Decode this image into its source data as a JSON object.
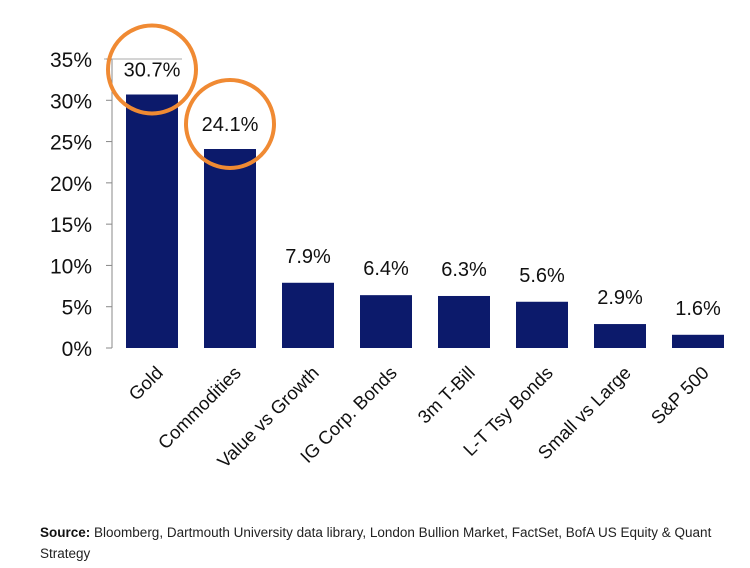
{
  "chart_data": {
    "type": "bar",
    "categories": [
      "Gold",
      "Commodities",
      "Value vs Growth",
      "IG Corp. Bonds",
      "3m T-Bill",
      "L-T Tsy Bonds",
      "Small vs Large",
      "S&P 500"
    ],
    "values": [
      30.7,
      24.1,
      7.9,
      6.4,
      6.3,
      5.6,
      2.9,
      1.6
    ],
    "data_labels": [
      "30.7%",
      "24.1%",
      "7.9%",
      "6.4%",
      "6.3%",
      "5.6%",
      "2.9%",
      "1.6%"
    ],
    "highlighted": [
      "Gold",
      "Commodities"
    ],
    "yticks": [
      "0%",
      "5%",
      "10%",
      "15%",
      "20%",
      "25%",
      "30%",
      "35%"
    ],
    "ylim": [
      0,
      35
    ],
    "grid": false,
    "bar_color": "#0c1a6b",
    "highlight_color": "#f08a33"
  },
  "source": {
    "label": "Source:",
    "text": "Bloomberg, Dartmouth University  data library, London Bullion Market, FactSet, BofA US Equity & Quant Strategy"
  }
}
